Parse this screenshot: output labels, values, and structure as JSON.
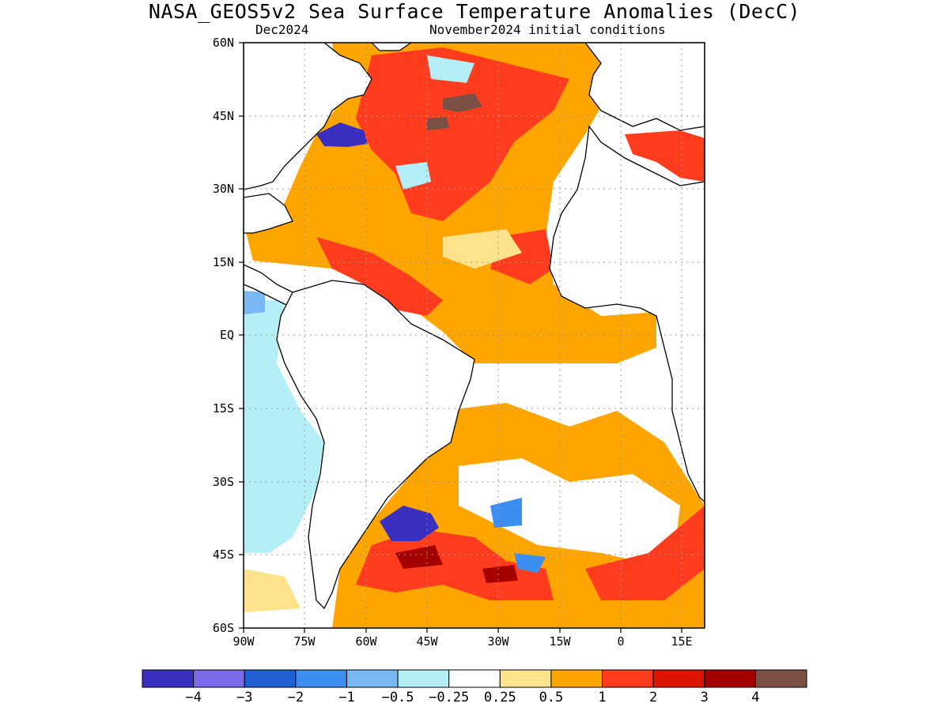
{
  "title": "NASA_GEOS5v2 Sea Surface Temperature Anomalies (DecC)",
  "subtitle_left": "Dec2024",
  "subtitle_right": "November2024 initial conditions",
  "lat_labels": [
    "60N",
    "45N",
    "30N",
    "15N",
    "EQ",
    "15S",
    "30S",
    "45S",
    "60S"
  ],
  "lon_labels": [
    "90W",
    "75W",
    "60W",
    "45W",
    "30W",
    "15W",
    "0",
    "15E"
  ],
  "colorbar": {
    "colors": [
      "#3b2fbf",
      "#7b6be8",
      "#1f5fcf",
      "#3c8ff0",
      "#78b8f5",
      "#b4eef7",
      "#ffffff",
      "#ffe28c",
      "#ffa500",
      "#ff3c1e",
      "#dc1400",
      "#a50000",
      "#7a4f44"
    ],
    "tick_labels": [
      "−4",
      "−3",
      "−2",
      "−1",
      "−0.5",
      "−0.25",
      "0.25",
      "0.5",
      "1",
      "2",
      "3",
      "4"
    ]
  },
  "chart_data": {
    "type": "heatmap",
    "title": "NASA_GEOS5v2 Sea Surface Temperature Anomalies (DecC)",
    "lon_range": [
      -90,
      20
    ],
    "lat_range": [
      -60,
      60
    ],
    "levels": [
      -4,
      -3,
      -2,
      -1,
      -0.5,
      -0.25,
      0.25,
      0.5,
      1,
      2,
      3,
      4
    ]
  }
}
